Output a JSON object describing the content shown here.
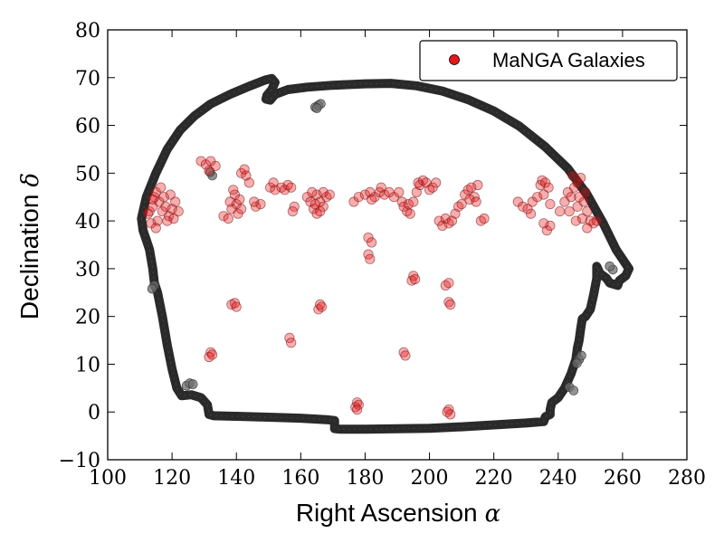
{
  "chart_data": {
    "type": "scatter",
    "title": "",
    "xlabel": "Right Ascension",
    "xlabel_symbol": "α",
    "ylabel": "Declination",
    "ylabel_symbol": "δ",
    "xlim": [
      100,
      280
    ],
    "ylim": [
      -10,
      80
    ],
    "xticks": [
      100,
      120,
      140,
      160,
      180,
      200,
      220,
      240,
      260,
      280
    ],
    "yticks": [
      -10,
      0,
      10,
      20,
      30,
      40,
      50,
      60,
      70,
      80
    ],
    "xtick_labels": [
      "100",
      "120",
      "140",
      "160",
      "180",
      "200",
      "220",
      "240",
      "260",
      "280"
    ],
    "ytick_labels": [
      "−10",
      "0",
      "10",
      "20",
      "30",
      "40",
      "50",
      "60",
      "70",
      "80"
    ],
    "grid": false,
    "legend": {
      "position": "top-right",
      "entries": [
        "MaNGA Galaxies"
      ]
    },
    "series": [
      {
        "name": "Survey footprint boundary",
        "kind": "outline",
        "color": "#2a2a2a",
        "points": [
          [
            110.5,
            40.5
          ],
          [
            112,
            45
          ],
          [
            115,
            50
          ],
          [
            118.5,
            55
          ],
          [
            122.5,
            59
          ],
          [
            127,
            62
          ],
          [
            132,
            64.5
          ],
          [
            138,
            66.5
          ],
          [
            144,
            68.2
          ],
          [
            149,
            69.5
          ],
          [
            151,
            69.8
          ],
          [
            152,
            69
          ],
          [
            151,
            67.5
          ],
          [
            149.5,
            66.3
          ],
          [
            149.2,
            65.5
          ],
          [
            150.5,
            65.3
          ],
          [
            152,
            66.5
          ],
          [
            156,
            67.5
          ],
          [
            162,
            68
          ],
          [
            170,
            68.4
          ],
          [
            180,
            68.7
          ],
          [
            188,
            68.8
          ],
          [
            196,
            68.3
          ],
          [
            204,
            67.2
          ],
          [
            212,
            65.4
          ],
          [
            220,
            63
          ],
          [
            228,
            59.8
          ],
          [
            236,
            55.5
          ],
          [
            243,
            51
          ],
          [
            249,
            45.5
          ],
          [
            254,
            39.5
          ],
          [
            258,
            34
          ],
          [
            262,
            30
          ],
          [
            261,
            28.5
          ],
          [
            259,
            27.5
          ],
          [
            258.5,
            26.5
          ],
          [
            256,
            27
          ],
          [
            255,
            28
          ],
          [
            253,
            29
          ],
          [
            252,
            30.5
          ],
          [
            252,
            28
          ],
          [
            251,
            24.5
          ],
          [
            250,
            21.5
          ],
          [
            249,
            20.5
          ],
          [
            248.5,
            20
          ],
          [
            247.5,
            19.5
          ],
          [
            247,
            17.5
          ],
          [
            246.5,
            15
          ],
          [
            246,
            13.5
          ],
          [
            245.5,
            11
          ],
          [
            244,
            8
          ],
          [
            242,
            5
          ],
          [
            240,
            3
          ],
          [
            238,
            2
          ],
          [
            237.5,
            0.5
          ],
          [
            237.5,
            -0.5
          ],
          [
            236,
            -1
          ],
          [
            235.5,
            -2
          ],
          [
            230,
            -2.3
          ],
          [
            220,
            -2.7
          ],
          [
            210,
            -3.1
          ],
          [
            200,
            -3.4
          ],
          [
            190,
            -3.5
          ],
          [
            180,
            -3.6
          ],
          [
            172,
            -3.6
          ],
          [
            170.5,
            -3.5
          ],
          [
            170.5,
            -1.8
          ],
          [
            168,
            -1.6
          ],
          [
            160,
            -1.3
          ],
          [
            150,
            -1.1
          ],
          [
            140,
            -0.9
          ],
          [
            133,
            -0.8
          ],
          [
            131.5,
            -0.5
          ],
          [
            131,
            1.5
          ],
          [
            129,
            3
          ],
          [
            126,
            3.6
          ],
          [
            123,
            3.4
          ],
          [
            121.5,
            5
          ],
          [
            120,
            9
          ],
          [
            118.5,
            14
          ],
          [
            117,
            20
          ],
          [
            115.5,
            25
          ],
          [
            114.5,
            27
          ],
          [
            114,
            30
          ],
          [
            113,
            34
          ],
          [
            112,
            36
          ],
          [
            111,
            38
          ],
          [
            110.5,
            40.5
          ]
        ]
      },
      {
        "name": "Footprint fragments",
        "kind": "gray-points",
        "color": "#6e6e6e",
        "points": [
          [
            164.5,
            63.8
          ],
          [
            165.5,
            64.2
          ],
          [
            166.2,
            64.5
          ],
          [
            165,
            63.6
          ],
          [
            132.5,
            49.5
          ],
          [
            131.8,
            50.2
          ],
          [
            124.5,
            5.5
          ],
          [
            125.5,
            6
          ],
          [
            126.5,
            5.8
          ],
          [
            243.5,
            5.2
          ],
          [
            244.8,
            4.5
          ],
          [
            246.5,
            11
          ],
          [
            245.8,
            10.2
          ],
          [
            247.2,
            11.8
          ],
          [
            257,
            29.8
          ],
          [
            256,
            30.5
          ],
          [
            114.5,
            26.5
          ],
          [
            113.8,
            25.8
          ]
        ]
      },
      {
        "name": "MaNGA Galaxies",
        "kind": "points",
        "color": "#e8161b",
        "points": [
          [
            113,
            42
          ],
          [
            114,
            43
          ],
          [
            114.5,
            45
          ],
          [
            115,
            46
          ],
          [
            116,
            44
          ],
          [
            117,
            42
          ],
          [
            118,
            43
          ],
          [
            119,
            41
          ],
          [
            120,
            42.5
          ],
          [
            121,
            44
          ],
          [
            115.5,
            40
          ],
          [
            113.5,
            39.5
          ],
          [
            116.5,
            47
          ],
          [
            119.5,
            45.5
          ],
          [
            118.5,
            40
          ],
          [
            122,
            42
          ],
          [
            114,
            44.5
          ],
          [
            117.5,
            45
          ],
          [
            120.5,
            40.5
          ],
          [
            112.5,
            41.5
          ],
          [
            115,
            38.5
          ],
          [
            129,
            52.5
          ],
          [
            130.5,
            51.8
          ],
          [
            132,
            52.5
          ],
          [
            133.5,
            51.5
          ],
          [
            131.5,
            50.5
          ],
          [
            139.5,
            45.5
          ],
          [
            140,
            43.5
          ],
          [
            138,
            44
          ],
          [
            141,
            44.5
          ],
          [
            136,
            41
          ],
          [
            138.5,
            42.5
          ],
          [
            140.5,
            41.5
          ],
          [
            137.5,
            40.5
          ],
          [
            139,
            46.5
          ],
          [
            141.5,
            42.5
          ],
          [
            141.5,
            50
          ],
          [
            143,
            49.5
          ],
          [
            142.5,
            50.8
          ],
          [
            144,
            48
          ],
          [
            146,
            43
          ],
          [
            147.5,
            43.5
          ],
          [
            145.5,
            44
          ],
          [
            150.5,
            47
          ],
          [
            151.5,
            48
          ],
          [
            152,
            46.5
          ],
          [
            154,
            47
          ],
          [
            155,
            46.5
          ],
          [
            156,
            47.5
          ],
          [
            157,
            47
          ],
          [
            158,
            43
          ],
          [
            157.5,
            42
          ],
          [
            162,
            45
          ],
          [
            163,
            44
          ],
          [
            164,
            42.5
          ],
          [
            165,
            41.5
          ],
          [
            166,
            42
          ],
          [
            167,
            43
          ],
          [
            168,
            45
          ],
          [
            165,
            45.5
          ],
          [
            167,
            46
          ],
          [
            163.5,
            46
          ],
          [
            166,
            44
          ],
          [
            169,
            45.5
          ],
          [
            164.5,
            43.5
          ],
          [
            176.5,
            44
          ],
          [
            178,
            45
          ],
          [
            180,
            45.5
          ],
          [
            181.5,
            46
          ],
          [
            183,
            45
          ],
          [
            184.5,
            46
          ],
          [
            186,
            45.5
          ],
          [
            187.5,
            46
          ],
          [
            189,
            45
          ],
          [
            190.5,
            46
          ],
          [
            185,
            47
          ],
          [
            191.5,
            44
          ],
          [
            182,
            44.5
          ],
          [
            192,
            43
          ],
          [
            193,
            42
          ],
          [
            194,
            41.5
          ],
          [
            193.5,
            43.5
          ],
          [
            195,
            44
          ],
          [
            196,
            46
          ],
          [
            197,
            47.5
          ],
          [
            198,
            48.5
          ],
          [
            199,
            48
          ],
          [
            200,
            46.5
          ],
          [
            201,
            47
          ],
          [
            196.5,
            48
          ],
          [
            202,
            48
          ],
          [
            203,
            40
          ],
          [
            204,
            39
          ],
          [
            205,
            40.5
          ],
          [
            206,
            39.5
          ],
          [
            207,
            40
          ],
          [
            208,
            41.5
          ],
          [
            209,
            43
          ],
          [
            210,
            43.5
          ],
          [
            211,
            45.5
          ],
          [
            212,
            46.5
          ],
          [
            213,
            47
          ],
          [
            214,
            45
          ],
          [
            215,
            47.5
          ],
          [
            212.5,
            44.5
          ],
          [
            214.5,
            44
          ],
          [
            216,
            40
          ],
          [
            217,
            40.5
          ],
          [
            227.5,
            44
          ],
          [
            229,
            43
          ],
          [
            230.5,
            42.5
          ],
          [
            231.5,
            41.5
          ],
          [
            232,
            44
          ],
          [
            233.5,
            45
          ],
          [
            234.5,
            47.5
          ],
          [
            235,
            48.5
          ],
          [
            236,
            48
          ],
          [
            237,
            47
          ],
          [
            235.5,
            45.5
          ],
          [
            237.5,
            43.5
          ],
          [
            236.5,
            38
          ],
          [
            237.5,
            39
          ],
          [
            235.5,
            39.5
          ],
          [
            240.5,
            42
          ],
          [
            242,
            44
          ],
          [
            243,
            46
          ],
          [
            244,
            45
          ],
          [
            245,
            47
          ],
          [
            246,
            48
          ],
          [
            247,
            49
          ],
          [
            244.5,
            49.5
          ],
          [
            248,
            44
          ],
          [
            249,
            42
          ],
          [
            247.5,
            40.5
          ],
          [
            246,
            43
          ],
          [
            250,
            40
          ],
          [
            251,
            39.5
          ],
          [
            249,
            38.5
          ],
          [
            252,
            40
          ],
          [
            243.5,
            42
          ],
          [
            245.5,
            40
          ],
          [
            248.5,
            46
          ],
          [
            246.5,
            45
          ],
          [
            138.5,
            22.5
          ],
          [
            139.5,
            22.8
          ],
          [
            140,
            22
          ],
          [
            132,
            12.5
          ],
          [
            131.5,
            11.5
          ],
          [
            132.5,
            12
          ],
          [
            156.5,
            15.5
          ],
          [
            157,
            14.5
          ],
          [
            165.5,
            21.5
          ],
          [
            166,
            22.5
          ],
          [
            166.5,
            22
          ],
          [
            177.5,
            2
          ],
          [
            177,
            1
          ],
          [
            178,
            1.5
          ],
          [
            177.5,
            0.5
          ],
          [
            181,
            36.5
          ],
          [
            182,
            35.5
          ],
          [
            181,
            33
          ],
          [
            181.5,
            32
          ],
          [
            192,
            12.5
          ],
          [
            192.5,
            11.8
          ],
          [
            194.5,
            27.5
          ],
          [
            195,
            28.5
          ],
          [
            195.5,
            27.8
          ],
          [
            205,
            26.5
          ],
          [
            206,
            27
          ],
          [
            206,
            23
          ],
          [
            206.5,
            22.5
          ],
          [
            206,
            0.5
          ],
          [
            206.5,
            -0.5
          ],
          [
            205.5,
            0
          ]
        ]
      }
    ]
  }
}
